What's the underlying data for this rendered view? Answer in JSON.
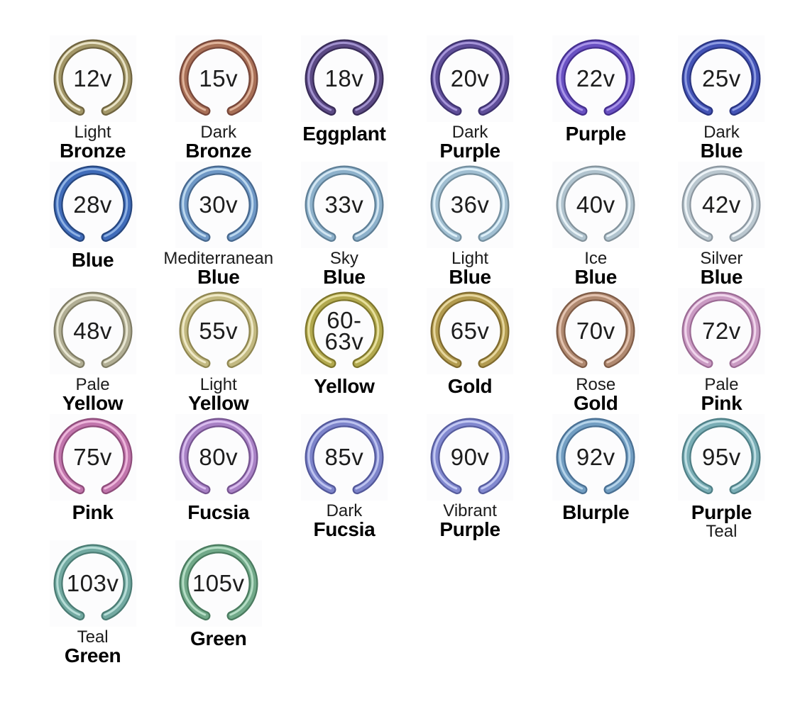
{
  "page": {
    "background": "#ffffff",
    "description_items_count": "26"
  },
  "items": [
    {
      "voltage_lines": [
        "12v"
      ],
      "name_lines": [
        {
          "text": "Light",
          "bold": false
        },
        {
          "text": "Bronze",
          "bold": true
        }
      ],
      "colors": {
        "dark": "#6f6440",
        "base": "#a39768",
        "light": "#e8e2c6"
      }
    },
    {
      "voltage_lines": [
        "15v"
      ],
      "name_lines": [
        {
          "text": "Dark",
          "bold": false
        },
        {
          "text": "Bronze",
          "bold": true
        }
      ],
      "colors": {
        "dark": "#77473a",
        "base": "#a86f56",
        "light": "#dfb49c"
      }
    },
    {
      "voltage_lines": [
        "18v"
      ],
      "name_lines": [
        {
          "text": "Eggplant",
          "bold": true
        }
      ],
      "colors": {
        "dark": "#392c58",
        "base": "#5c4a85",
        "light": "#a292cf"
      }
    },
    {
      "voltage_lines": [
        "20v"
      ],
      "name_lines": [
        {
          "text": "Dark",
          "bold": false
        },
        {
          "text": "Purple",
          "bold": true
        }
      ],
      "colors": {
        "dark": "#3f3370",
        "base": "#5f4e99",
        "light": "#a695d9"
      }
    },
    {
      "voltage_lines": [
        "22v"
      ],
      "name_lines": [
        {
          "text": "Purple",
          "bold": true
        }
      ],
      "colors": {
        "dark": "#452f8e",
        "base": "#6951c2",
        "light": "#a995e9"
      }
    },
    {
      "voltage_lines": [
        "25v"
      ],
      "name_lines": [
        {
          "text": "Dark",
          "bold": false
        },
        {
          "text": "Blue",
          "bold": true
        }
      ],
      "colors": {
        "dark": "#2a3582",
        "base": "#4353b6",
        "light": "#8e9ce2"
      }
    },
    {
      "voltage_lines": [
        "28v"
      ],
      "name_lines": [
        {
          "text": "Blue",
          "bold": true
        }
      ],
      "colors": {
        "dark": "#27477f",
        "base": "#406cba",
        "light": "#8fb2e4"
      }
    },
    {
      "voltage_lines": [
        "30v"
      ],
      "name_lines": [
        {
          "text": "Mediterranean",
          "bold": false
        },
        {
          "text": "Blue",
          "bold": true
        }
      ],
      "colors": {
        "dark": "#47688e",
        "base": "#6f98c6",
        "light": "#bcd8ee"
      }
    },
    {
      "voltage_lines": [
        "33v"
      ],
      "name_lines": [
        {
          "text": "Sky",
          "bold": false
        },
        {
          "text": "Blue",
          "bold": true
        }
      ],
      "colors": {
        "dark": "#5f7f96",
        "base": "#8db1cb",
        "light": "#d3e6f2"
      }
    },
    {
      "voltage_lines": [
        "36v"
      ],
      "name_lines": [
        {
          "text": "Light",
          "bold": false
        },
        {
          "text": "Blue",
          "bold": true
        }
      ],
      "colors": {
        "dark": "#748f9f",
        "base": "#a1bfd2",
        "light": "#def0f9"
      }
    },
    {
      "voltage_lines": [
        "40v"
      ],
      "name_lines": [
        {
          "text": "Ice",
          "bold": false
        },
        {
          "text": "Blue",
          "bold": true
        }
      ],
      "colors": {
        "dark": "#84939c",
        "base": "#b1c4cf",
        "light": "#e8f2f7"
      }
    },
    {
      "voltage_lines": [
        "42v"
      ],
      "name_lines": [
        {
          "text": "Silver",
          "bold": false
        },
        {
          "text": "Blue",
          "bold": true
        }
      ],
      "colors": {
        "dark": "#8c97a0",
        "base": "#bac7cf",
        "light": "#eef4f8"
      }
    },
    {
      "voltage_lines": [
        "48v"
      ],
      "name_lines": [
        {
          "text": "Pale",
          "bold": false
        },
        {
          "text": "Yellow",
          "bold": true
        }
      ],
      "colors": {
        "dark": "#7f7c64",
        "base": "#b1ae94",
        "light": "#e9e7d3"
      }
    },
    {
      "voltage_lines": [
        "55v"
      ],
      "name_lines": [
        {
          "text": "Light",
          "bold": false
        },
        {
          "text": "Yellow",
          "bold": true
        }
      ],
      "colors": {
        "dark": "#8f8651",
        "base": "#c2b981",
        "light": "#efe9c8"
      }
    },
    {
      "voltage_lines": [
        "60-",
        "63v"
      ],
      "name_lines": [
        {
          "text": "Yellow",
          "bold": true
        }
      ],
      "colors": {
        "dark": "#7e762c",
        "base": "#b2a94e",
        "light": "#e7e09e"
      }
    },
    {
      "voltage_lines": [
        "65v"
      ],
      "name_lines": [
        {
          "text": "Gold",
          "bold": true
        }
      ],
      "colors": {
        "dark": "#7f6a2e",
        "base": "#b29b4f",
        "light": "#e6d69e"
      }
    },
    {
      "voltage_lines": [
        "70v"
      ],
      "name_lines": [
        {
          "text": "Rose",
          "bold": false
        },
        {
          "text": "Gold",
          "bold": true
        }
      ],
      "colors": {
        "dark": "#7f5c47",
        "base": "#b08970",
        "light": "#e3c3b0"
      }
    },
    {
      "voltage_lines": [
        "72v"
      ],
      "name_lines": [
        {
          "text": "Pale",
          "bold": false
        },
        {
          "text": "Pink",
          "bold": true
        }
      ],
      "colors": {
        "dark": "#9c6b95",
        "base": "#ca9bc3",
        "light": "#f0d6ec"
      }
    },
    {
      "voltage_lines": [
        "75v"
      ],
      "name_lines": [
        {
          "text": "Pink",
          "bold": true
        }
      ],
      "colors": {
        "dark": "#8f4d7b",
        "base": "#c175ac",
        "light": "#edb6db"
      }
    },
    {
      "voltage_lines": [
        "80v"
      ],
      "name_lines": [
        {
          "text": "Fucsia",
          "bold": true
        }
      ],
      "colors": {
        "dark": "#765490",
        "base": "#a881c5",
        "light": "#d9bdee"
      }
    },
    {
      "voltage_lines": [
        "85v"
      ],
      "name_lines": [
        {
          "text": "Dark",
          "bold": false
        },
        {
          "text": "Fucsia",
          "bold": true
        }
      ],
      "colors": {
        "dark": "#53589a",
        "base": "#7d84ca",
        "light": "#bdc3ef"
      }
    },
    {
      "voltage_lines": [
        "90v"
      ],
      "name_lines": [
        {
          "text": "Vibrant",
          "bold": false
        },
        {
          "text": "Purple",
          "bold": true
        }
      ],
      "colors": {
        "dark": "#575d9e",
        "base": "#8188cf",
        "light": "#c2c8f2"
      }
    },
    {
      "voltage_lines": [
        "92v"
      ],
      "name_lines": [
        {
          "text": "Blurple",
          "bold": true
        }
      ],
      "colors": {
        "dark": "#4a7093",
        "base": "#729ec2",
        "light": "#b6d4ea"
      }
    },
    {
      "voltage_lines": [
        "95v"
      ],
      "name_lines": [
        {
          "text": "Purple",
          "bold": true
        },
        {
          "text": "Teal",
          "bold": false
        }
      ],
      "colors": {
        "dark": "#4f7f86",
        "base": "#79adb5",
        "light": "#c0dfe4"
      }
    },
    {
      "voltage_lines": [
        "103v"
      ],
      "name_lines": [
        {
          "text": "Teal",
          "bold": false
        },
        {
          "text": "Green",
          "bold": true
        }
      ],
      "colors": {
        "dark": "#4b7c74",
        "base": "#72a9a1",
        "light": "#b7ddd7"
      }
    },
    {
      "voltage_lines": [
        "105v"
      ],
      "name_lines": [
        {
          "text": "Green",
          "bold": true
        }
      ],
      "colors": {
        "dark": "#4a7b5f",
        "base": "#71a989",
        "light": "#b5ddc5"
      }
    }
  ]
}
